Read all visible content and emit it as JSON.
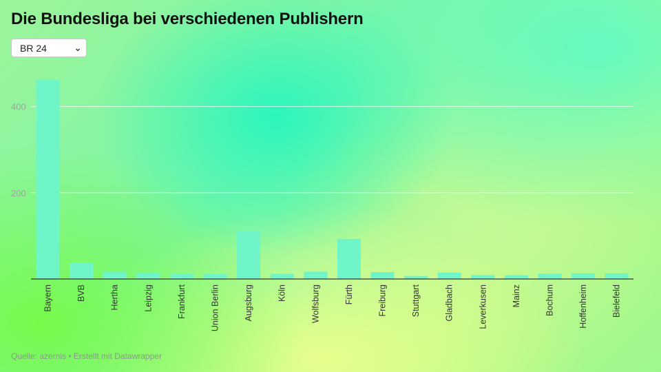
{
  "title": "Die Bundesliga bei verschiedenen Publishern",
  "selector": {
    "value": "BR 24",
    "icon": "chevron-down-icon"
  },
  "source": "Quelle: azernis • Erstellt mit Datawrapper",
  "colors": {
    "bar": "#6ff5c8",
    "grid": "#ffffff",
    "axis": "#333333",
    "tick_text": "#9aa79a",
    "label_text": "#333333"
  },
  "chart_data": {
    "type": "bar",
    "title": "Die Bundesliga bei verschiedenen Publishern",
    "xlabel": "",
    "ylabel": "",
    "ylim": [
      0,
      460
    ],
    "yticks": [
      200,
      400
    ],
    "grid": true,
    "categories": [
      "Bayern",
      "BVB",
      "Hertha",
      "Leipzig",
      "Frankfurt",
      "Union Berlin",
      "Augsburg",
      "Köln",
      "Wolfsburg",
      "Fürth",
      "Freiburg",
      "Stuttgart",
      "Gladbach",
      "Leverkusen",
      "Mainz",
      "Bochum",
      "Hoffenheim",
      "Bielefeld"
    ],
    "values": [
      462,
      38,
      17,
      14,
      12,
      12,
      112,
      12,
      17,
      93,
      16,
      7,
      15,
      9,
      9,
      12,
      13,
      13
    ]
  }
}
